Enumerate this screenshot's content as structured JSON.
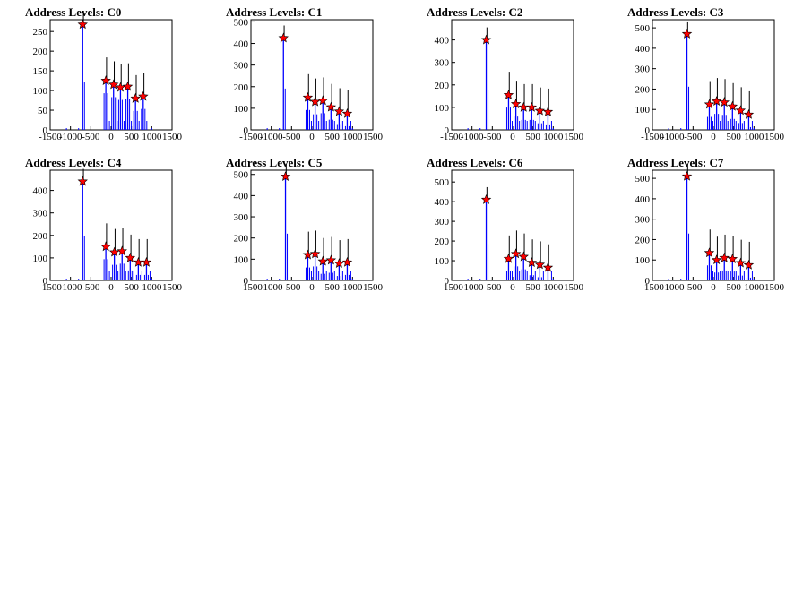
{
  "colors": {
    "hist": "#0000ff",
    "err": "#000000",
    "marker": "#ff0000",
    "frame": "#000000"
  },
  "chart_data": [
    {
      "type": "bar",
      "title": "Address Levels: C0",
      "xlim": [
        -1500,
        1500
      ],
      "ylim": [
        0,
        280
      ],
      "xticks": [
        "-1500",
        "-1000",
        "-500",
        "0",
        "500",
        "1000",
        "1500"
      ],
      "yticks": [
        0,
        50,
        100,
        150,
        200,
        250
      ],
      "peak_markers": [
        {
          "x": -700,
          "y": 268
        },
        {
          "x": -130,
          "y": 125
        },
        {
          "x": 60,
          "y": 115
        },
        {
          "x": 230,
          "y": 108
        },
        {
          "x": 410,
          "y": 110
        },
        {
          "x": 600,
          "y": 80
        },
        {
          "x": 790,
          "y": 85
        }
      ]
    },
    {
      "type": "bar",
      "title": "Address Levels: C1",
      "xlim": [
        -1500,
        1500
      ],
      "ylim": [
        0,
        510
      ],
      "xticks": [
        "-1500",
        "-1000",
        "-500",
        "0",
        "500",
        "1000",
        "1500"
      ],
      "yticks": [
        0,
        100,
        200,
        300,
        400,
        500
      ],
      "peak_markers": [
        {
          "x": -700,
          "y": 425
        },
        {
          "x": -100,
          "y": 150
        },
        {
          "x": 80,
          "y": 130
        },
        {
          "x": 270,
          "y": 135
        },
        {
          "x": 470,
          "y": 105
        },
        {
          "x": 670,
          "y": 85
        },
        {
          "x": 870,
          "y": 75
        }
      ]
    },
    {
      "type": "bar",
      "title": "Address Levels: C2",
      "xlim": [
        -1500,
        1500
      ],
      "ylim": [
        0,
        490
      ],
      "xticks": [
        "-1500",
        "-1000",
        "-500",
        "0",
        "500",
        "1000",
        "1500"
      ],
      "yticks": [
        0,
        100,
        200,
        300,
        400
      ],
      "peak_markers": [
        {
          "x": -650,
          "y": 400
        },
        {
          "x": -100,
          "y": 155
        },
        {
          "x": 80,
          "y": 115
        },
        {
          "x": 270,
          "y": 100
        },
        {
          "x": 470,
          "y": 100
        },
        {
          "x": 670,
          "y": 85
        },
        {
          "x": 870,
          "y": 80
        }
      ]
    },
    {
      "type": "bar",
      "title": "Address Levels: C3",
      "xlim": [
        -1500,
        1500
      ],
      "ylim": [
        0,
        540
      ],
      "xticks": [
        "-1500",
        "-1000",
        "-500",
        "0",
        "500",
        "1000",
        "1500"
      ],
      "yticks": [
        0,
        100,
        200,
        300,
        400,
        500
      ],
      "peak_markers": [
        {
          "x": -650,
          "y": 470
        },
        {
          "x": -100,
          "y": 125
        },
        {
          "x": 80,
          "y": 140
        },
        {
          "x": 270,
          "y": 135
        },
        {
          "x": 470,
          "y": 115
        },
        {
          "x": 670,
          "y": 95
        },
        {
          "x": 870,
          "y": 75
        }
      ]
    },
    {
      "type": "bar",
      "title": "Address Levels: C4",
      "xlim": [
        -1500,
        1500
      ],
      "ylim": [
        0,
        490
      ],
      "xticks": [
        "-1500",
        "-1000",
        "-500",
        "0",
        "500",
        "1000",
        "1500"
      ],
      "yticks": [
        0,
        100,
        200,
        300,
        400
      ],
      "peak_markers": [
        {
          "x": -700,
          "y": 440
        },
        {
          "x": -130,
          "y": 150
        },
        {
          "x": 80,
          "y": 125
        },
        {
          "x": 270,
          "y": 130
        },
        {
          "x": 470,
          "y": 100
        },
        {
          "x": 670,
          "y": 80
        },
        {
          "x": 870,
          "y": 80
        }
      ]
    },
    {
      "type": "bar",
      "title": "Address Levels: C5",
      "xlim": [
        -1500,
        1500
      ],
      "ylim": [
        0,
        520
      ],
      "xticks": [
        "-1500",
        "-1000",
        "-500",
        "0",
        "500",
        "1000",
        "1500"
      ],
      "yticks": [
        0,
        100,
        200,
        300,
        400,
        500
      ],
      "peak_markers": [
        {
          "x": -650,
          "y": 490
        },
        {
          "x": -100,
          "y": 120
        },
        {
          "x": 80,
          "y": 125
        },
        {
          "x": 270,
          "y": 90
        },
        {
          "x": 470,
          "y": 95
        },
        {
          "x": 670,
          "y": 80
        },
        {
          "x": 870,
          "y": 85
        }
      ]
    },
    {
      "type": "bar",
      "title": "Address Levels: C6",
      "xlim": [
        -1500,
        1500
      ],
      "ylim": [
        0,
        560
      ],
      "xticks": [
        "-1500",
        "-1000",
        "-500",
        "0",
        "500",
        "1000",
        "1500"
      ],
      "yticks": [
        0,
        100,
        200,
        300,
        400,
        500
      ],
      "peak_markers": [
        {
          "x": -650,
          "y": 410
        },
        {
          "x": -100,
          "y": 110
        },
        {
          "x": 80,
          "y": 135
        },
        {
          "x": 270,
          "y": 120
        },
        {
          "x": 470,
          "y": 90
        },
        {
          "x": 670,
          "y": 80
        },
        {
          "x": 870,
          "y": 65
        }
      ]
    },
    {
      "type": "bar",
      "title": "Address Levels: C7",
      "xlim": [
        -1500,
        1500
      ],
      "ylim": [
        0,
        540
      ],
      "xticks": [
        "-1500",
        "-1000",
        "-500",
        "0",
        "500",
        "1000",
        "1500"
      ],
      "yticks": [
        0,
        100,
        200,
        300,
        400,
        500
      ],
      "peak_markers": [
        {
          "x": -650,
          "y": 510
        },
        {
          "x": -100,
          "y": 135
        },
        {
          "x": 80,
          "y": 100
        },
        {
          "x": 270,
          "y": 110
        },
        {
          "x": 470,
          "y": 105
        },
        {
          "x": 670,
          "y": 85
        },
        {
          "x": 870,
          "y": 75
        }
      ]
    }
  ]
}
